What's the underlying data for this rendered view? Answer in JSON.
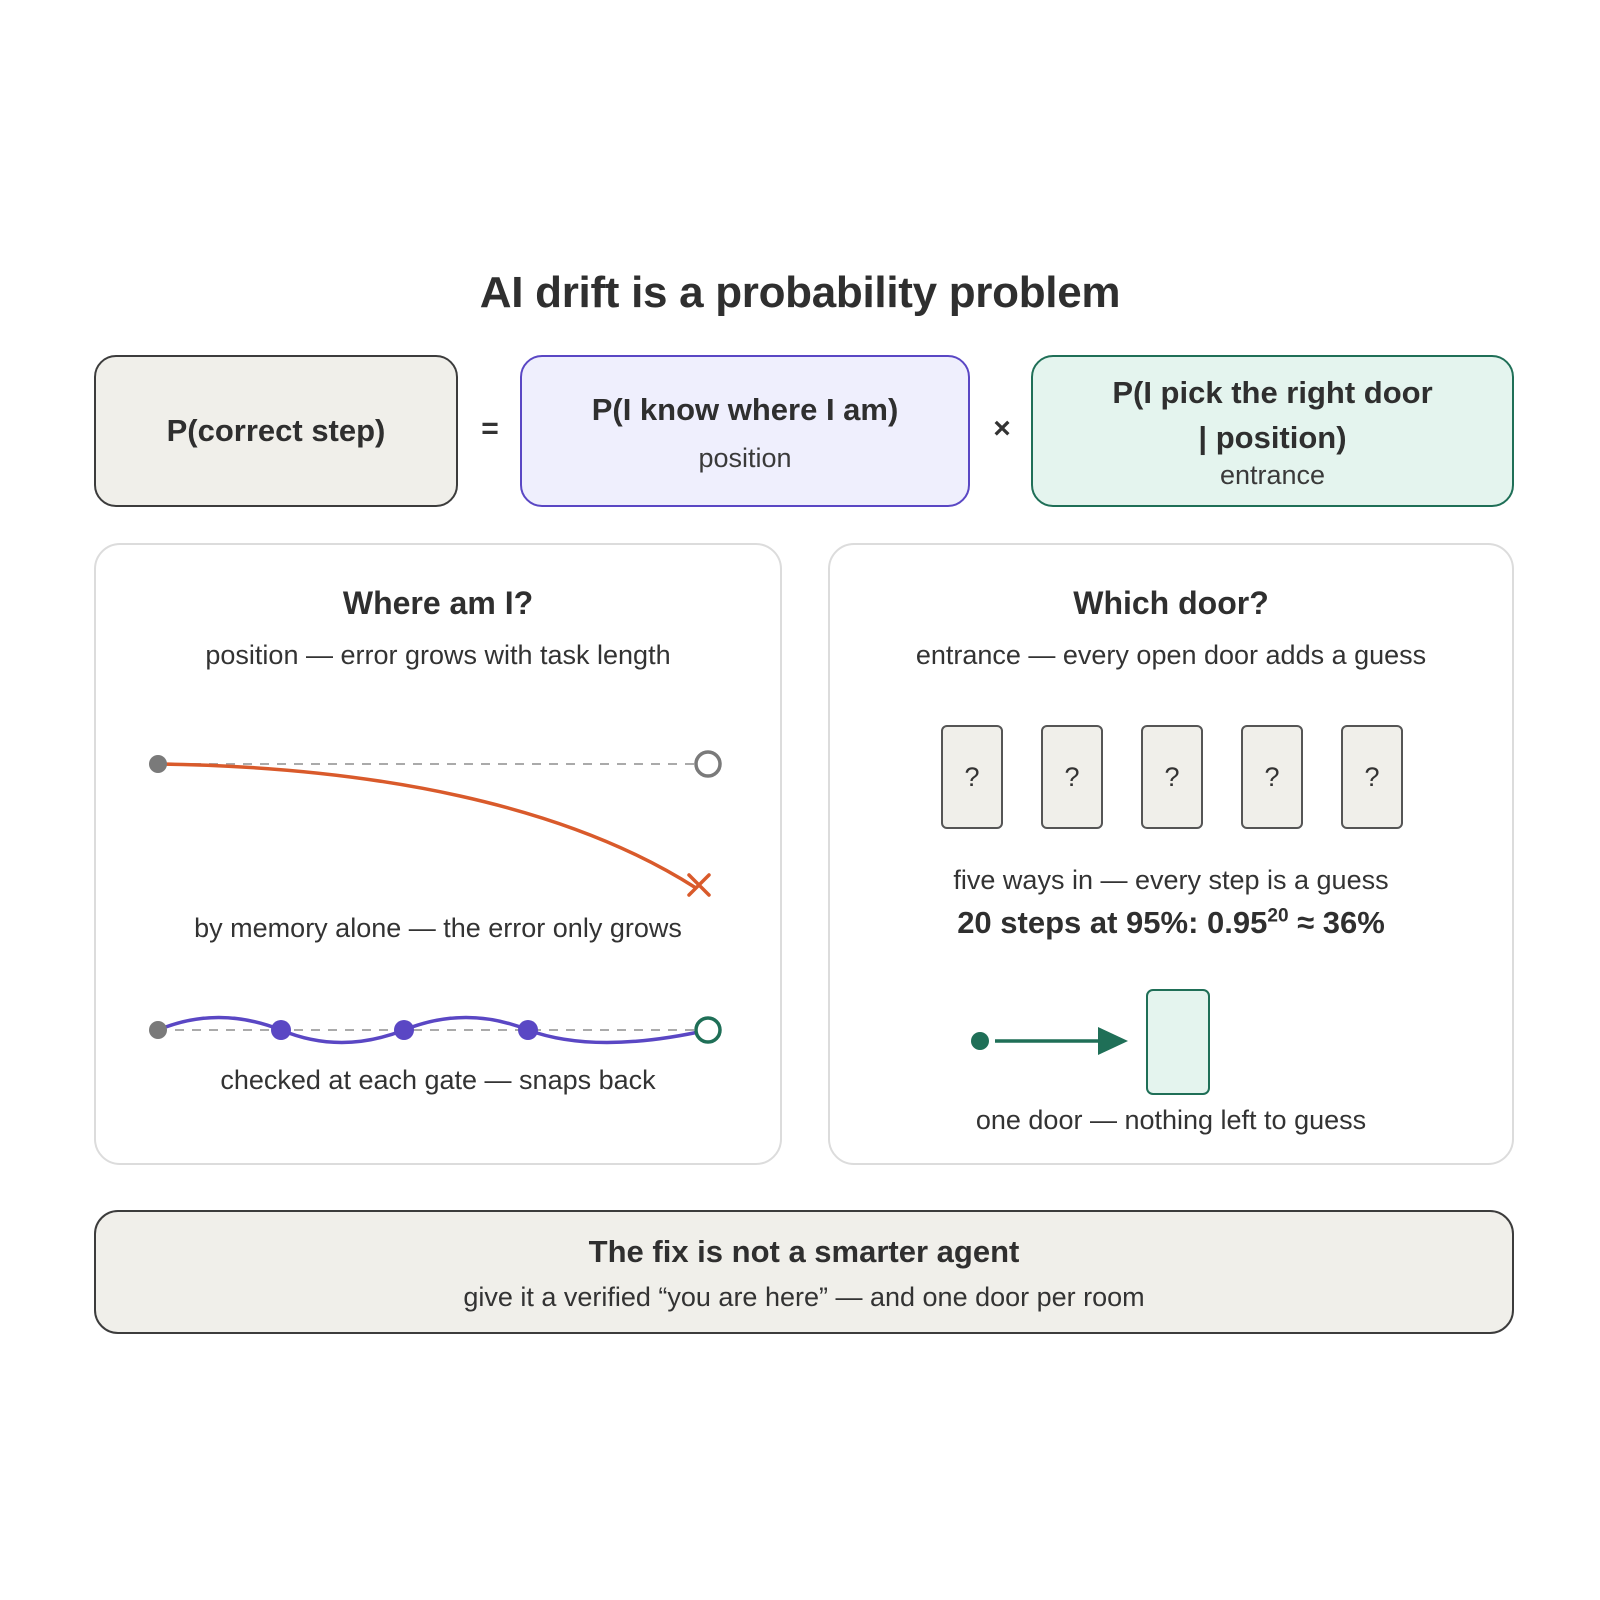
{
  "title": "AI drift is a probability problem",
  "equation": {
    "lhs": "P(correct step)",
    "equals": "=",
    "times": "×",
    "position_term": {
      "label": "P(I know where I am)",
      "sub": "position"
    },
    "entrance_term": {
      "label_line1": "P(I pick the right door",
      "label_line2": "| position)",
      "sub": "entrance"
    }
  },
  "left_panel": {
    "title": "Where am I?",
    "subtitle": "position — error grows with task length",
    "memory_caption": "by memory alone — the error only grows",
    "gate_caption": "checked at each gate — snaps back"
  },
  "right_panel": {
    "title": "Which door?",
    "subtitle": "entrance — every open door adds a guess",
    "doors": [
      "?",
      "?",
      "?",
      "?",
      "?"
    ],
    "doors_caption": "five ways in — every step is a guess",
    "math": {
      "prefix": "20 steps at 95%: 0.95",
      "exponent": "20",
      "suffix": " ≈ 36%"
    },
    "single_door_caption": "one door — nothing left to guess"
  },
  "footer": {
    "title": "The fix is not a smarter agent",
    "subtitle": "give it a verified “you are here” — and one door per room"
  },
  "colors": {
    "drift": "#d95a2b",
    "gate": "#5a47c4",
    "door_green": "#1f6f57",
    "neutral": "#7a7a7a"
  }
}
